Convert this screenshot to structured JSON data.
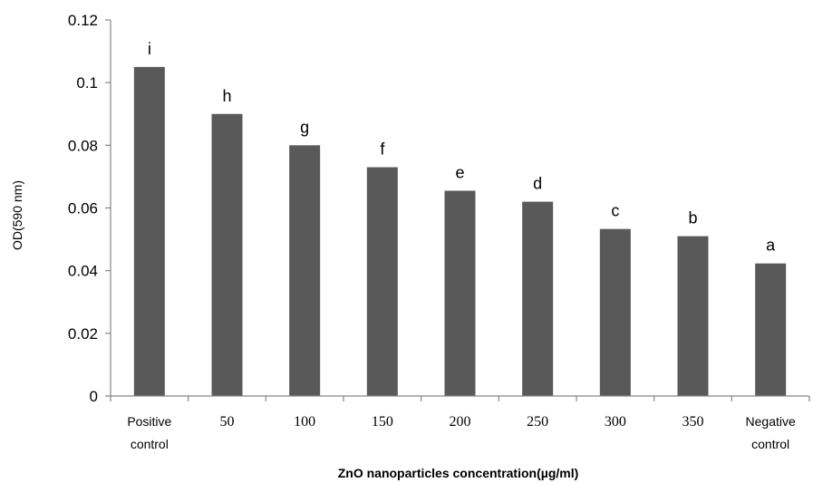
{
  "chart_data": {
    "type": "bar",
    "categories": [
      [
        "Positive",
        "control"
      ],
      [
        "50"
      ],
      [
        "100"
      ],
      [
        "150"
      ],
      [
        "200"
      ],
      [
        "250"
      ],
      [
        "300"
      ],
      [
        "350"
      ],
      [
        "Negative",
        "control"
      ]
    ],
    "values": [
      0.105,
      0.09,
      0.08,
      0.073,
      0.0655,
      0.062,
      0.0533,
      0.051,
      0.0423
    ],
    "data_labels": [
      "i",
      "h",
      "g",
      "f",
      "e",
      "d",
      "c",
      "b",
      "a"
    ],
    "title": "",
    "xlabel": "ZnO nanoparticles concentration(µg/ml)",
    "ylabel": "OD(590 nm)",
    "ylim": [
      0,
      0.12
    ],
    "yticks": [
      0,
      0.02,
      0.04,
      0.06,
      0.08,
      0.1,
      0.12
    ],
    "ytick_labels": [
      "0",
      "0.02",
      "0.04",
      "0.06",
      "0.08",
      "0.1",
      "0.12"
    ],
    "grid": false,
    "legend": "none",
    "bar_color": "#595959"
  }
}
